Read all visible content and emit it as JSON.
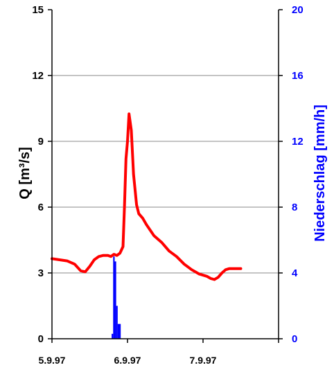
{
  "chart_data": {
    "type": "line",
    "title": "",
    "xlabel": "",
    "ylabel_left": "Q  [m³/s]",
    "ylabel_right": "Niederschlag [mm/h]",
    "x_categories": [
      "5.9.97",
      "6.9.97",
      "7.9.97"
    ],
    "xlim_days": [
      0,
      3
    ],
    "ylim_left": [
      0,
      15
    ],
    "ylim_right": [
      0,
      20
    ],
    "yticks_left": [
      "0",
      "3",
      "6",
      "9",
      "12",
      "15"
    ],
    "yticks_right": [
      "0",
      "4",
      "8",
      "12",
      "16",
      "20"
    ],
    "grid": "horizontal",
    "colors": {
      "discharge": "#ff0000",
      "rain": "#0000ff",
      "right_axis_text": "#0000ff"
    },
    "series": [
      {
        "axis": "left",
        "kind": "line",
        "points": [
          [
            0.0,
            3.65
          ],
          [
            0.1,
            3.6
          ],
          [
            0.2,
            3.55
          ],
          [
            0.3,
            3.4
          ],
          [
            0.38,
            3.1
          ],
          [
            0.44,
            3.05
          ],
          [
            0.5,
            3.3
          ],
          [
            0.56,
            3.6
          ],
          [
            0.62,
            3.75
          ],
          [
            0.68,
            3.8
          ],
          [
            0.74,
            3.8
          ],
          [
            0.78,
            3.75
          ],
          [
            0.82,
            3.85
          ],
          [
            0.86,
            3.8
          ],
          [
            0.9,
            3.9
          ],
          [
            0.94,
            4.2
          ],
          [
            0.96,
            6.0
          ],
          [
            0.98,
            8.2
          ],
          [
            1.0,
            9.0
          ],
          [
            1.02,
            10.25
          ],
          [
            1.05,
            9.5
          ],
          [
            1.08,
            7.5
          ],
          [
            1.12,
            6.1
          ],
          [
            1.15,
            5.7
          ],
          [
            1.2,
            5.5
          ],
          [
            1.25,
            5.2
          ],
          [
            1.35,
            4.7
          ],
          [
            1.45,
            4.4
          ],
          [
            1.55,
            4.0
          ],
          [
            1.65,
            3.75
          ],
          [
            1.75,
            3.4
          ],
          [
            1.85,
            3.15
          ],
          [
            1.95,
            2.95
          ],
          [
            2.05,
            2.85
          ],
          [
            2.1,
            2.75
          ],
          [
            2.15,
            2.7
          ],
          [
            2.2,
            2.8
          ],
          [
            2.25,
            3.0
          ],
          [
            2.3,
            3.15
          ],
          [
            2.35,
            3.2
          ],
          [
            2.42,
            3.2
          ],
          [
            2.5,
            3.2
          ]
        ]
      },
      {
        "axis": "right",
        "kind": "bars",
        "points": [
          [
            0.8,
            0.3
          ],
          [
            0.82,
            5.0
          ],
          [
            0.84,
            4.7
          ],
          [
            0.86,
            2.0
          ],
          [
            0.88,
            0.9
          ],
          [
            0.9,
            0.9
          ]
        ]
      }
    ]
  }
}
